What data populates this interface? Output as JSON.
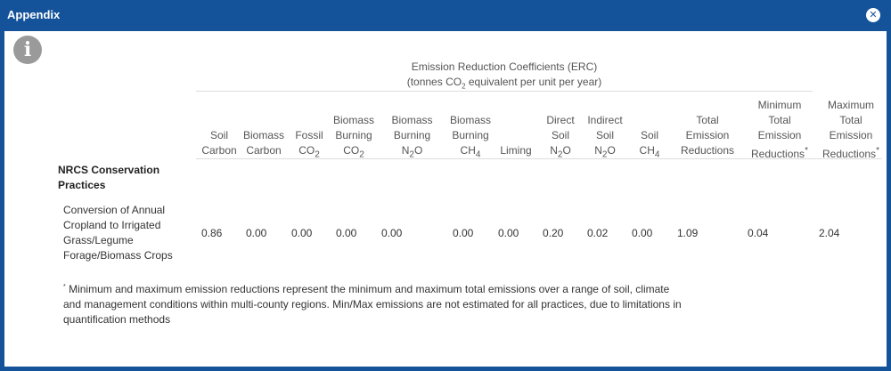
{
  "dialog": {
    "title": "Appendix",
    "close_glyph": "✕"
  },
  "info_icon": "info-icon",
  "table": {
    "group_header": {
      "line1": "Emission Reduction Coefficients (ERC)",
      "line2_pre": "(tonnes CO",
      "line2_sub": "2",
      "line2_post": " equivalent per unit per year)"
    },
    "row_group_label": "NRCS Conservation Practices",
    "rows": [
      {
        "practice": "Conversion of Annual Cropland to Irrigated Grass/Legume Forage/Biomass Crops",
        "values": [
          "0.86",
          "0.00",
          "0.00",
          "0.00",
          "0.00",
          "0.00",
          "0.00",
          "0.20",
          "0.02",
          "0.00",
          "1.09",
          "0.04",
          "2.04"
        ]
      }
    ]
  },
  "footnote": {
    "marker": "*",
    "text": " Minimum and maximum emission reductions represent the minimum and maximum total emissions over a range of soil, climate and management conditions within multi-county regions. Min/Max emissions are not estimated for all practices, due to limitations in quantification methods"
  }
}
